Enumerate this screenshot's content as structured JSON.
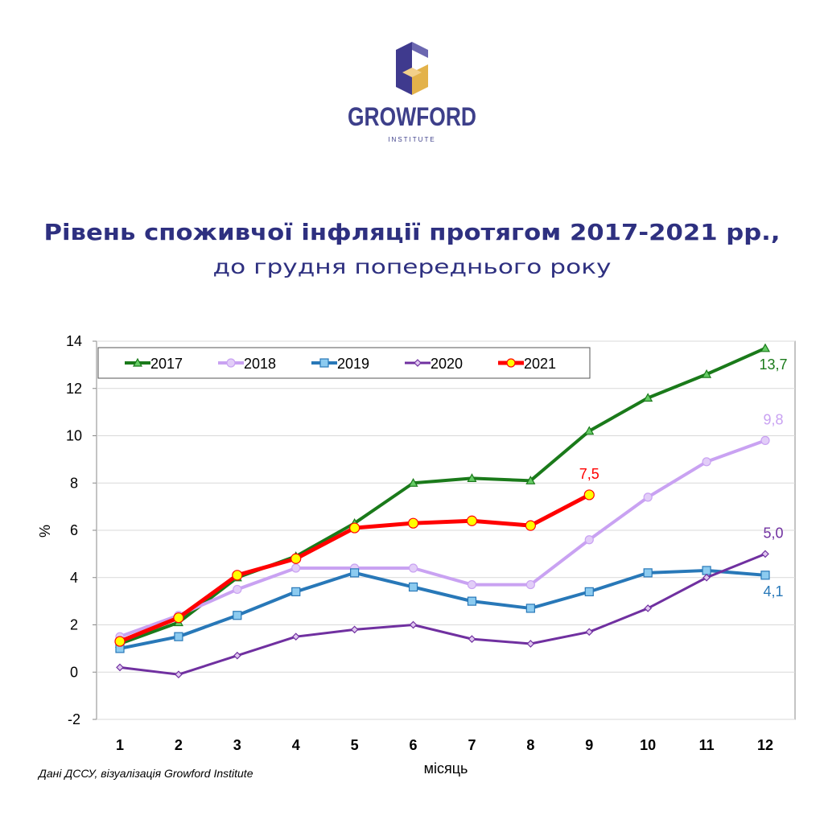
{
  "logo": {
    "name": "GROWFORD",
    "tagline": "INSTITUTE"
  },
  "chart_data": {
    "type": "line",
    "title": "Рівень споживчої інфляції протягом 2017-2021 рр.,",
    "subtitle": "до грудня попереднього року",
    "xlabel": "місяць",
    "ylabel": "%",
    "source": "Дані ДССУ, візуалізація Growford Institute",
    "categories": [
      "1",
      "2",
      "3",
      "4",
      "5",
      "6",
      "7",
      "8",
      "9",
      "10",
      "11",
      "12"
    ],
    "ylim": [
      -2,
      14
    ],
    "yticks": [
      -2,
      0,
      2,
      4,
      6,
      8,
      10,
      12,
      14
    ],
    "grid": true,
    "legend": "top-left",
    "series": [
      {
        "name": "2017",
        "color": "#1a7a1a",
        "marker": "triangle",
        "marker_fill": "#66cc66",
        "values": [
          1.2,
          2.1,
          4.0,
          4.9,
          6.3,
          8.0,
          8.2,
          8.1,
          10.2,
          11.6,
          12.6,
          13.7
        ],
        "value_labels": [
          null,
          null,
          null,
          null,
          null,
          null,
          null,
          null,
          null,
          null,
          null,
          "13,7"
        ]
      },
      {
        "name": "2018",
        "color": "#c9a2f2",
        "marker": "circle",
        "marker_fill": "#e2cdf8",
        "values": [
          1.5,
          2.4,
          3.5,
          4.4,
          4.4,
          4.4,
          3.7,
          3.7,
          5.6,
          7.4,
          8.9,
          9.8
        ],
        "value_labels": [
          null,
          null,
          null,
          null,
          null,
          null,
          null,
          null,
          null,
          null,
          null,
          "9,8"
        ]
      },
      {
        "name": "2019",
        "color": "#2878b8",
        "marker": "square",
        "marker_fill": "#8ccbf0",
        "values": [
          1.0,
          1.5,
          2.4,
          3.4,
          4.2,
          3.6,
          3.0,
          2.7,
          3.4,
          4.2,
          4.3,
          4.1
        ],
        "value_labels": [
          null,
          null,
          null,
          null,
          null,
          null,
          null,
          null,
          null,
          null,
          null,
          "4,1"
        ]
      },
      {
        "name": "2020",
        "color": "#7030a0",
        "marker": "diamond",
        "marker_fill": "#e0c8f0",
        "values": [
          0.2,
          -0.1,
          0.7,
          1.5,
          1.8,
          2.0,
          1.4,
          1.2,
          1.7,
          2.7,
          4.0,
          5.0
        ],
        "value_labels": [
          null,
          null,
          null,
          null,
          null,
          null,
          null,
          null,
          null,
          null,
          null,
          "5,0"
        ]
      },
      {
        "name": "2021",
        "color": "#ff0000",
        "marker": "circle",
        "marker_fill": "#ffff00",
        "values": [
          1.3,
          2.3,
          4.1,
          4.8,
          6.1,
          6.3,
          6.4,
          6.2,
          7.5,
          null,
          null,
          null
        ],
        "value_labels": [
          null,
          null,
          null,
          null,
          null,
          null,
          null,
          null,
          "7,5",
          null,
          null,
          null
        ]
      }
    ]
  }
}
